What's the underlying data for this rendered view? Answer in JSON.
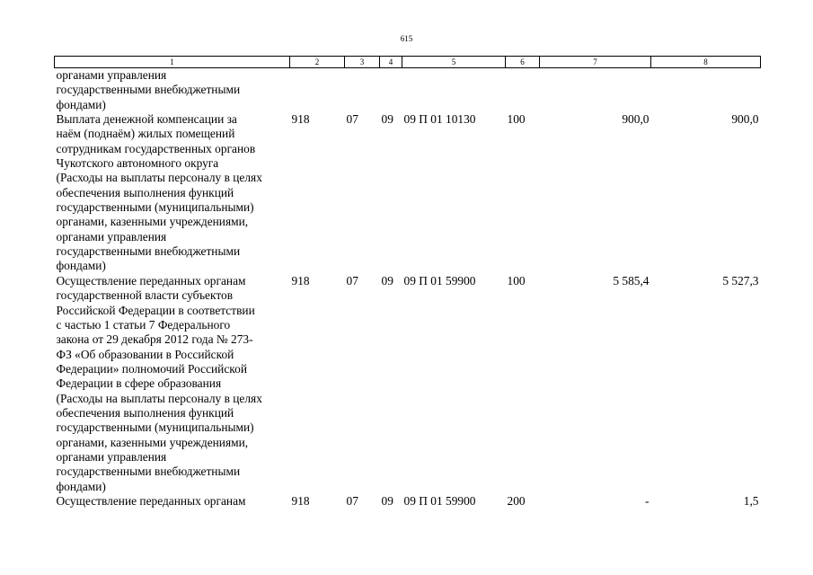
{
  "page_number": "615",
  "header": [
    "1",
    "2",
    "3",
    "4",
    "5",
    "6",
    "7",
    "8"
  ],
  "rows": [
    {
      "name": "органами управления\nгосударственными внебюджетными\nфондами)",
      "c2": "",
      "c3": "",
      "c4": "",
      "c5": "",
      "c6": "",
      "c7": "",
      "c8": ""
    },
    {
      "name": "Выплата денежной компенсации за\nнаём (поднаём) жилых помещений\nсотрудникам государственных органов\nЧукотского автономного округа\n(Расходы на выплаты персоналу в целях\nобеспечения выполнения функций\nгосударственными (муниципальными)\nорганами, казенными учреждениями,\nорганами управления\nгосударственными внебюджетными\nфондами)",
      "c2": "918",
      "c3": "07",
      "c4": "09",
      "c5": "09 П 01 10130",
      "c6": "100",
      "c7": "900,0",
      "c8": "900,0"
    },
    {
      "name": "Осуществление переданных органам\nгосударственной власти субъектов\nРоссийской Федерации в соответствии\nс частью 1 статьи 7 Федерального\nзакона от 29 декабря 2012 года № 273-\nФЗ «Об образовании в Российской\nФедерации» полномочий Российской\nФедерации в сфере образования\n(Расходы на выплаты персоналу в целях\nобеспечения выполнения функций\nгосударственными (муниципальными)\nорганами, казенными учреждениями,\nорганами управления\nгосударственными внебюджетными\nфондами)",
      "c2": "918",
      "c3": "07",
      "c4": "09",
      "c5": "09 П 01 59900",
      "c6": "100",
      "c7": "5 585,4",
      "c8": "5 527,3"
    },
    {
      "name": "Осуществление переданных органам",
      "c2": "918",
      "c3": "07",
      "c4": "09",
      "c5": "09 П 01 59900",
      "c6": "200",
      "c7": "-",
      "c8": "1,5"
    }
  ]
}
